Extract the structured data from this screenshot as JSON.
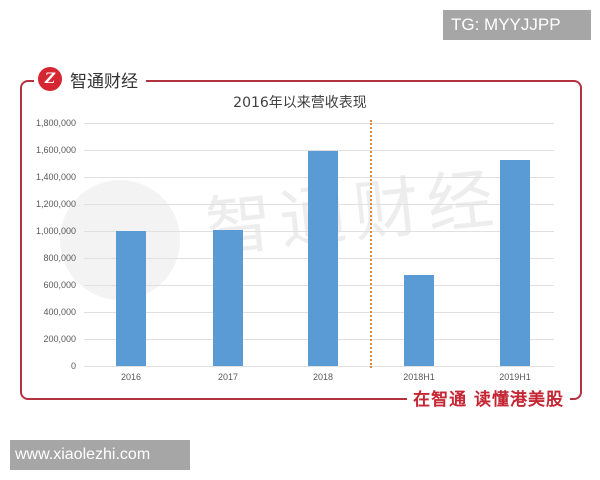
{
  "badges": {
    "top_right": "TG: MYYJJPP",
    "bottom_left": "www.xiaolezhi.com"
  },
  "brand": {
    "logo_glyph": "Z",
    "name": "智通财经",
    "slogan": "在智通  读懂港美股",
    "watermark": "智通财经",
    "accent_color": "#b3323f"
  },
  "chart_data": {
    "type": "bar",
    "title": "2016年以来营收表现",
    "xlabel": "",
    "ylabel": "",
    "categories": [
      "2016",
      "2017",
      "2018",
      "2018H1",
      "2019H1"
    ],
    "values": [
      1000000,
      1010000,
      1595000,
      675000,
      1525000
    ],
    "ylim": [
      0,
      1800000
    ],
    "yticks": [
      "0",
      "200,000",
      "400,000",
      "600,000",
      "800,000",
      "1,000,000",
      "1,200,000",
      "1,400,000",
      "1,600,000",
      "1,800,000"
    ],
    "grid": true,
    "legend": "none",
    "bar_color": "#5b9bd5",
    "divider": {
      "between": [
        "2018",
        "2018H1"
      ],
      "style": "dotted",
      "color": "#e08a3a"
    }
  }
}
